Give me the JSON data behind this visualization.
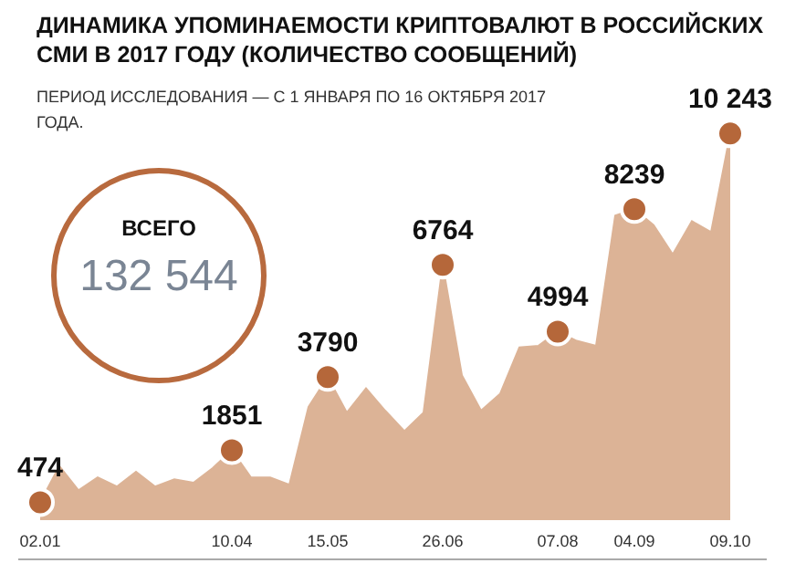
{
  "chart_data": {
    "type": "area",
    "title": "ДИНАМИКА УПОМИНАЕМОСТИ КРИПТОВАЛЮТ В РОССИЙСКИХ СМИ В 2017 ГОДУ (КОЛИЧЕСТВО СООБЩЕНИЙ)",
    "subtitle": "ПЕРИОД ИССЛЕДОВАНИЯ — С 1 ЯНВАРЯ ПО 16 ОКТЯБРЯ 2017 ГОДА.",
    "annotations": [
      "ВСЕГО",
      "132 544"
    ],
    "categories": [
      "02.01",
      null,
      null,
      null,
      null,
      null,
      null,
      null,
      null,
      null,
      "10.04",
      null,
      null,
      null,
      null,
      "15.05",
      null,
      null,
      null,
      null,
      null,
      "26.06",
      null,
      null,
      null,
      null,
      null,
      "07.08",
      null,
      null,
      null,
      "04.09",
      null,
      null,
      null,
      null,
      "09.10"
    ],
    "values": [
      474,
      1430,
      790,
      1130,
      890,
      1280,
      890,
      1080,
      990,
      1380,
      1851,
      1130,
      1130,
      940,
      3000,
      3790,
      2850,
      3490,
      2900,
      2360,
      2850,
      6764,
      3840,
      2900,
      3350,
      4580,
      4620,
      4994,
      4750,
      4620,
      8070,
      8239,
      7820,
      7040,
      7920,
      7630,
      10243
    ],
    "value_labels": [
      "474",
      null,
      null,
      null,
      null,
      null,
      null,
      null,
      null,
      null,
      "1851",
      null,
      null,
      null,
      null,
      "3790",
      null,
      null,
      null,
      null,
      null,
      "6764",
      null,
      null,
      null,
      null,
      null,
      "4994",
      null,
      null,
      null,
      "8239",
      null,
      null,
      null,
      null,
      "10 243"
    ],
    "color": "#dcb396"
  }
}
